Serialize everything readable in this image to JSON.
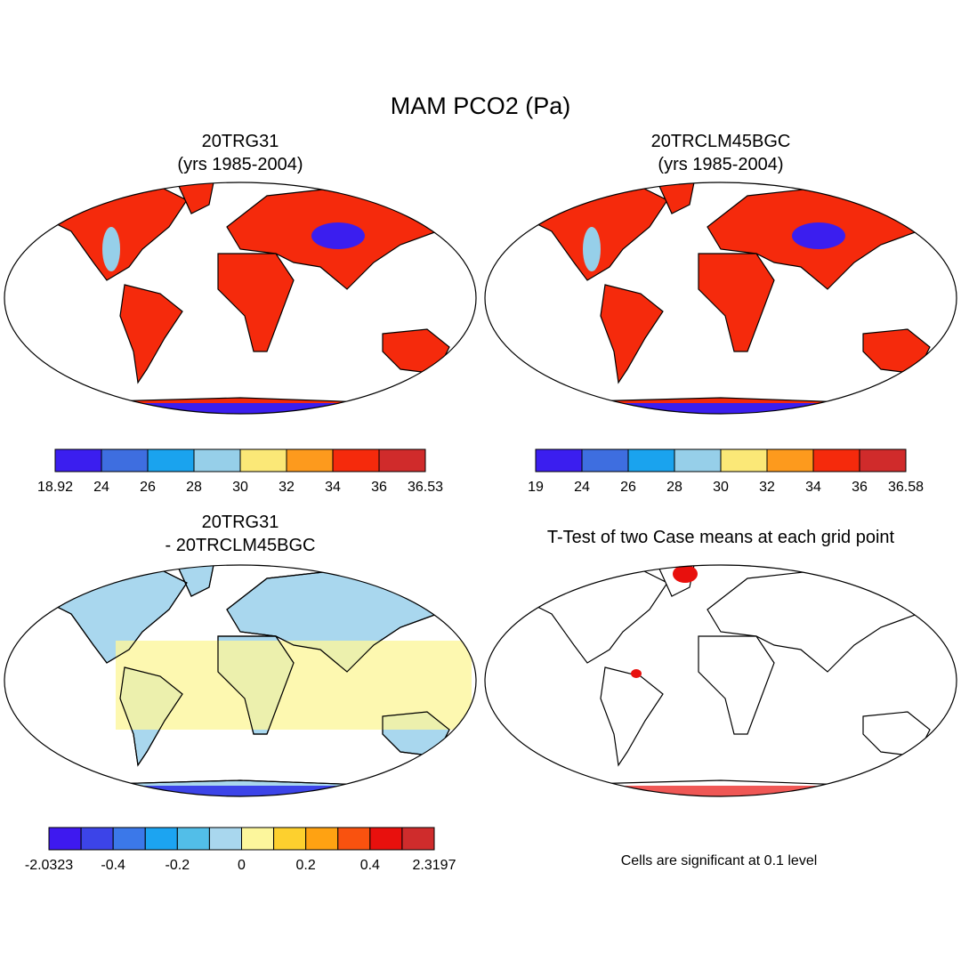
{
  "title": "MAM PCO2 (Pa)",
  "panels": [
    {
      "title": [
        "20TRG31",
        "(yrs 1985-2004)"
      ],
      "colorbar": {
        "colors": [
          "#3b1eef",
          "#3e6ee0",
          "#1aa3ee",
          "#96cfe9",
          "#fbe877",
          "#fd9a1d",
          "#f52a0c",
          "#d02b2b"
        ],
        "labels": [
          18.92,
          24,
          26,
          28,
          30,
          32,
          34,
          36,
          36.53
        ]
      }
    },
    {
      "title": [
        "20TRCLM45BGC",
        "(yrs 1985-2004)"
      ],
      "colorbar": {
        "colors": [
          "#3b1eef",
          "#3e6ee0",
          "#1aa3ee",
          "#96cfe9",
          "#fbe877",
          "#fd9a1d",
          "#f52a0c",
          "#d02b2b"
        ],
        "labels": [
          19,
          24,
          26,
          28,
          30,
          32,
          34,
          36,
          36.58
        ]
      }
    },
    {
      "title": [
        "20TRG31",
        "- 20TRCLM45BGC"
      ],
      "colorbar": {
        "colors": [
          "#3e19ef",
          "#3c44e8",
          "#3b78e9",
          "#1ca4f1",
          "#52bee8",
          "#a9d7ee",
          "#fcf69c",
          "#fdd02e",
          "#ffa212",
          "#f9520f",
          "#e8100d",
          "#cf2c2c"
        ],
        "labels": [
          -2.0323,
          -0.4,
          -0.2,
          0,
          0.2,
          0.4,
          2.3197
        ]
      }
    },
    {
      "title": [
        "T-Test of two Case means at each grid point"
      ],
      "note": "Cells are significant at 0.1 level"
    }
  ]
}
